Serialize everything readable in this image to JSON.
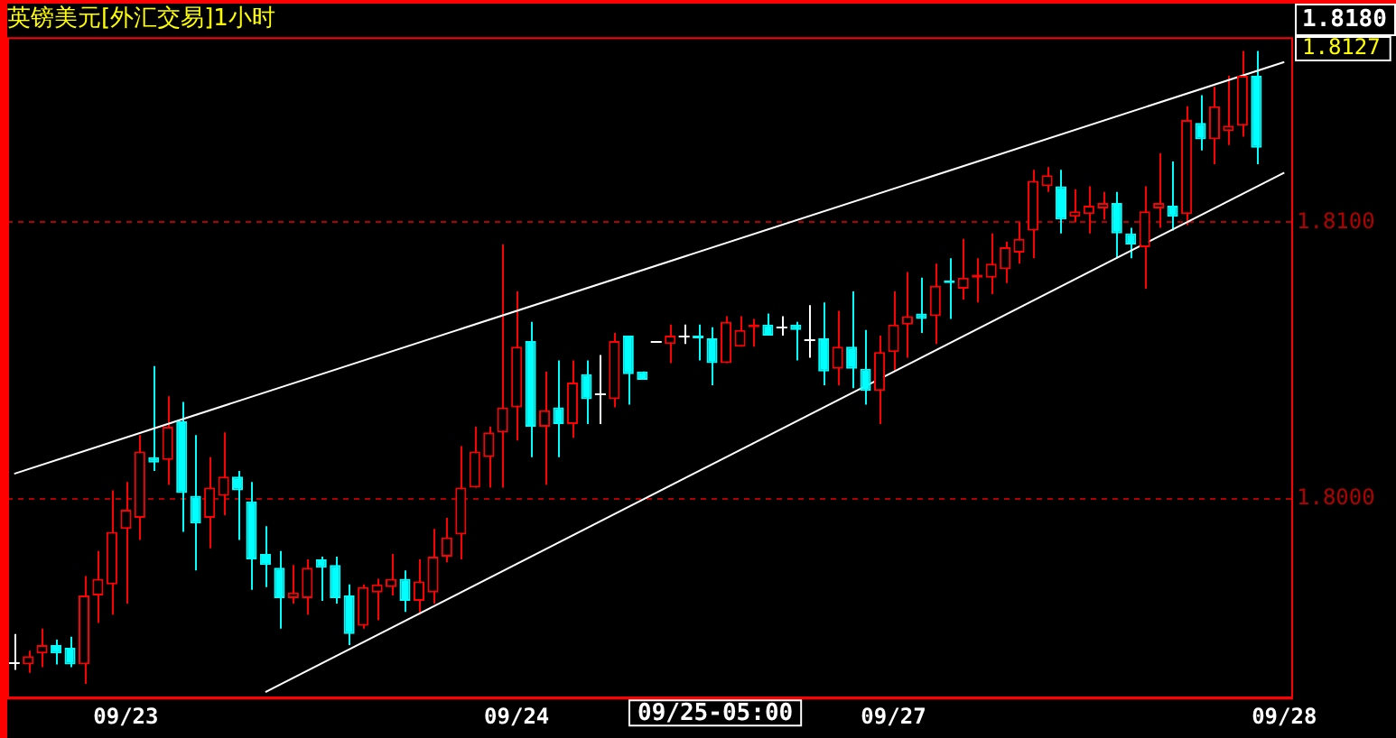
{
  "chart_data": {
    "type": "candlestick",
    "title": "英镑美元[外汇交易]1小时",
    "categories": [
      null,
      null,
      null,
      null,
      null,
      null,
      null,
      null,
      "09/23",
      null,
      null,
      null,
      null,
      null,
      null,
      null,
      null,
      null,
      null,
      null,
      null,
      null,
      null,
      null,
      null,
      null,
      null,
      null,
      null,
      null,
      null,
      null,
      null,
      null,
      null,
      null,
      "09/24",
      null,
      null,
      null,
      null,
      null,
      null,
      null,
      null,
      null,
      null,
      null,
      null,
      null,
      null,
      null,
      null,
      null,
      null,
      null,
      null,
      null,
      null,
      null,
      null,
      null,
      null,
      "09/27",
      null,
      null,
      null,
      null,
      null,
      null,
      null,
      null,
      null,
      null,
      null,
      null,
      null,
      null,
      null,
      null,
      null,
      null,
      null,
      null,
      null,
      null,
      null,
      null,
      null,
      null,
      null,
      "09/28"
    ],
    "series": [
      {
        "ohlc": [
          [
            1.7941,
            1.7951,
            1.7938,
            1.7941
          ],
          [
            1.794,
            1.7945,
            1.7937,
            1.7943
          ],
          [
            1.7944,
            1.7953,
            1.7939,
            1.7947
          ],
          [
            1.7947,
            1.7949,
            1.794,
            1.7944
          ],
          [
            1.7946,
            1.795,
            1.7939,
            1.794
          ],
          [
            1.794,
            1.7972,
            1.7933,
            1.7965
          ],
          [
            1.7965,
            1.7981,
            1.7955,
            1.7971
          ],
          [
            1.7969,
            1.8003,
            1.7958,
            1.7988
          ],
          [
            1.7989,
            1.8006,
            1.7962,
            1.7996
          ],
          [
            1.7993,
            1.8023,
            1.7985,
            1.8017
          ],
          [
            1.8015,
            1.8048,
            1.801,
            1.8013
          ],
          [
            1.8014,
            1.8037,
            1.8005,
            1.8026
          ],
          [
            1.8028,
            1.8035,
            1.7988,
            1.8002
          ],
          [
            1.8001,
            1.8023,
            1.7974,
            1.7991
          ],
          [
            1.7993,
            1.8015,
            1.7982,
            1.8004
          ],
          [
            1.8001,
            1.8024,
            1.7994,
            1.8008
          ],
          [
            1.8008,
            1.801,
            1.7985,
            1.8003
          ],
          [
            1.7999,
            1.8006,
            1.7967,
            1.7978
          ],
          [
            1.798,
            1.799,
            1.7968,
            1.7976
          ],
          [
            1.7975,
            1.7981,
            1.7953,
            1.7964
          ],
          [
            1.7964,
            1.7976,
            1.7962,
            1.7966
          ],
          [
            1.7964,
            1.7978,
            1.7958,
            1.7975
          ],
          [
            1.7978,
            1.7979,
            1.7963,
            1.7975
          ],
          [
            1.7976,
            1.7979,
            1.7962,
            1.7964
          ],
          [
            1.7965,
            1.7969,
            1.7947,
            1.7951
          ],
          [
            1.7954,
            1.7969,
            1.7953,
            1.7968
          ],
          [
            1.7966,
            1.7971,
            1.7956,
            1.7969
          ],
          [
            1.7968,
            1.798,
            1.7965,
            1.7971
          ],
          [
            1.7971,
            1.7974,
            1.7959,
            1.7963
          ],
          [
            1.7963,
            1.7978,
            1.7958,
            1.797
          ],
          [
            1.7966,
            1.7989,
            1.7962,
            1.7979
          ],
          [
            1.7979,
            1.7993,
            1.7977,
            1.7986
          ],
          [
            1.7987,
            1.8019,
            1.7978,
            1.8004
          ],
          [
            1.8004,
            1.8026,
            1.8004,
            1.8017
          ],
          [
            1.8015,
            1.8026,
            1.8004,
            1.8024
          ],
          [
            1.8024,
            1.8092,
            1.8004,
            1.8033
          ],
          [
            1.8033,
            1.8075,
            1.8021,
            1.8055
          ],
          [
            1.8057,
            1.8064,
            1.8015,
            1.8026
          ],
          [
            1.8026,
            1.8046,
            1.8005,
            1.8032
          ],
          [
            1.8033,
            1.805,
            1.8015,
            1.8027
          ],
          [
            1.8027,
            1.805,
            1.8022,
            1.8042
          ],
          [
            1.8045,
            1.805,
            1.8027,
            1.8036
          ],
          [
            1.8038,
            1.8052,
            1.8027,
            1.8038
          ],
          [
            1.8036,
            1.806,
            1.8033,
            1.8057
          ],
          [
            1.8059,
            1.8059,
            1.8034,
            1.8045
          ],
          [
            1.8046,
            1.8046,
            1.8043,
            1.8043
          ],
          [
            1.8057,
            1.8057,
            1.8057,
            1.8057
          ],
          [
            1.8056,
            1.8063,
            1.8049,
            1.8059
          ],
          [
            1.8059,
            1.8063,
            1.8056,
            1.8059
          ],
          [
            1.8059,
            1.8063,
            1.805,
            1.8058
          ],
          [
            1.8058,
            1.8062,
            1.8041,
            1.8049
          ],
          [
            1.8049,
            1.8066,
            1.8049,
            1.8064
          ],
          [
            1.8055,
            1.8066,
            1.8055,
            1.8061
          ],
          [
            1.8062,
            1.8065,
            1.8055,
            1.8063
          ],
          [
            1.8063,
            1.8067,
            1.8059,
            1.8059
          ],
          [
            1.8062,
            1.8066,
            1.8059,
            1.8062
          ],
          [
            1.8063,
            1.8064,
            1.805,
            1.8061
          ],
          [
            1.8058,
            1.807,
            1.8051,
            1.8058
          ],
          [
            1.8058,
            1.8071,
            1.8041,
            1.8046
          ],
          [
            1.8047,
            1.8068,
            1.8041,
            1.8055
          ],
          [
            1.8055,
            1.8075,
            1.804,
            1.8047
          ],
          [
            1.8047,
            1.8061,
            1.8034,
            1.8039
          ],
          [
            1.8039,
            1.8059,
            1.8027,
            1.8053
          ],
          [
            1.8053,
            1.8075,
            1.8046,
            1.8063
          ],
          [
            1.8063,
            1.8082,
            1.8051,
            1.8066
          ],
          [
            1.8067,
            1.808,
            1.806,
            1.8065
          ],
          [
            1.8066,
            1.8085,
            1.8056,
            1.8077
          ],
          [
            1.8079,
            1.8087,
            1.8065,
            1.8078
          ],
          [
            1.8076,
            1.8094,
            1.8072,
            1.808
          ],
          [
            1.808,
            1.8087,
            1.8071,
            1.8081
          ],
          [
            1.808,
            1.8096,
            1.8074,
            1.8085
          ],
          [
            1.8083,
            1.8093,
            1.8078,
            1.8091
          ],
          [
            1.8089,
            1.81,
            1.8085,
            1.8094
          ],
          [
            1.8097,
            1.8119,
            1.8087,
            1.8115
          ],
          [
            1.8113,
            1.812,
            1.8111,
            1.8117
          ],
          [
            1.8113,
            1.8119,
            1.8096,
            1.8101
          ],
          [
            1.8102,
            1.8112,
            1.81,
            1.8104
          ],
          [
            1.8103,
            1.8113,
            1.8096,
            1.8106
          ],
          [
            1.8105,
            1.8111,
            1.8101,
            1.8107
          ],
          [
            1.8107,
            1.8111,
            1.8087,
            1.8096
          ],
          [
            1.8096,
            1.8098,
            1.8087,
            1.8092
          ],
          [
            1.8091,
            1.8113,
            1.8076,
            1.8104
          ],
          [
            1.8105,
            1.8125,
            1.8098,
            1.8107
          ],
          [
            1.8106,
            1.8122,
            1.8097,
            1.8102
          ],
          [
            1.8103,
            1.8142,
            1.8099,
            1.8137
          ],
          [
            1.8136,
            1.8146,
            1.8126,
            1.813
          ],
          [
            1.813,
            1.8149,
            1.8121,
            1.8142
          ],
          [
            1.8133,
            1.8153,
            1.8128,
            1.8135
          ],
          [
            1.8135,
            1.8162,
            1.8131,
            1.8153
          ],
          [
            1.8153,
            1.8162,
            1.8121,
            1.8127
          ],
          null,
          null
        ],
        "colors": [
          "#ffffff",
          "#ff0000",
          "#ff0000",
          "#00ffff",
          "#00ffff",
          "#ff0000",
          "#ff0000",
          "#ff0000",
          "#ff0000",
          "#ff0000",
          "#00ffff",
          "#ff0000",
          "#00ffff",
          "#00ffff",
          "#ff0000",
          "#ff0000",
          "#00ffff",
          "#00ffff",
          "#00ffff",
          "#00ffff",
          "#ff0000",
          "#ff0000",
          "#00ffff",
          "#00ffff",
          "#00ffff",
          "#ff0000",
          "#ff0000",
          "#ff0000",
          "#00ffff",
          "#ff0000",
          "#ff0000",
          "#ff0000",
          "#ff0000",
          "#ff0000",
          "#ff0000",
          "#ff0000",
          "#ff0000",
          "#00ffff",
          "#ff0000",
          "#00ffff",
          "#ff0000",
          "#00ffff",
          "#ffffff",
          "#ff0000",
          "#00ffff",
          "#00ffff",
          "#ffffff",
          "#ff0000",
          "#ffffff",
          "#00ffff",
          "#00ffff",
          "#ff0000",
          "#ff0000",
          "#ff0000",
          "#00ffff",
          "#ffffff",
          "#00ffff",
          "#ffffff",
          "#00ffff",
          "#ff0000",
          "#00ffff",
          "#00ffff",
          "#ff0000",
          "#ff0000",
          "#ff0000",
          "#00ffff",
          "#ff0000",
          "#00ffff",
          "#ff0000",
          "#ff0000",
          "#ff0000",
          "#ff0000",
          "#ff0000",
          "#ff0000",
          "#ff0000",
          "#00ffff",
          "#ff0000",
          "#ff0000",
          "#ff0000",
          "#00ffff",
          "#00ffff",
          "#ff0000",
          "#ff0000",
          "#00ffff",
          "#ff0000",
          "#00ffff",
          "#ff0000",
          "#ff0000",
          "#ff0000",
          "#00ffff",
          null,
          null
        ]
      },
      {
        "type": "line",
        "color": "#ffffff",
        "values": [
          1.8009,
          null,
          null,
          null,
          null,
          null,
          null,
          null,
          null,
          null,
          null,
          null,
          null,
          null,
          null,
          null,
          null,
          null,
          null,
          null,
          null,
          null,
          null,
          null,
          null,
          null,
          null,
          null,
          null,
          null,
          null,
          null,
          null,
          null,
          null,
          null,
          null,
          null,
          null,
          null,
          null,
          null,
          null,
          null,
          null,
          null,
          null,
          null,
          null,
          null,
          null,
          null,
          null,
          null,
          null,
          null,
          null,
          null,
          null,
          null,
          null,
          null,
          null,
          null,
          null,
          null,
          null,
          null,
          null,
          null,
          null,
          null,
          null,
          null,
          null,
          null,
          null,
          null,
          null,
          null,
          null,
          null,
          null,
          null,
          null,
          null,
          null,
          null,
          null,
          null,
          null,
          1.8158
        ]
      },
      {
        "type": "line",
        "color": "#ffffff",
        "values": [
          null,
          null,
          null,
          null,
          null,
          null,
          null,
          null,
          null,
          null,
          null,
          null,
          null,
          null,
          null,
          null,
          null,
          null,
          1.793,
          null,
          null,
          null,
          null,
          null,
          null,
          null,
          null,
          null,
          null,
          null,
          null,
          null,
          null,
          null,
          null,
          null,
          null,
          null,
          null,
          null,
          null,
          null,
          null,
          null,
          null,
          null,
          null,
          null,
          null,
          null,
          null,
          null,
          null,
          null,
          null,
          null,
          null,
          null,
          null,
          null,
          null,
          null,
          null,
          null,
          null,
          null,
          null,
          null,
          null,
          null,
          null,
          null,
          null,
          null,
          null,
          null,
          null,
          null,
          null,
          null,
          null,
          null,
          null,
          null,
          null,
          null,
          null,
          null,
          null,
          null,
          null,
          1.8118
        ]
      }
    ],
    "ylim": [
      1.7928,
      1.8167
    ],
    "yticks": [
      {
        "value": 1.8,
        "label": "1.8000"
      },
      {
        "value": 1.81,
        "label": "1.8100"
      }
    ],
    "grid": "y",
    "legend": false,
    "annotations": [
      "1.8180",
      "09/25-05:00",
      "1.8127"
    ]
  }
}
